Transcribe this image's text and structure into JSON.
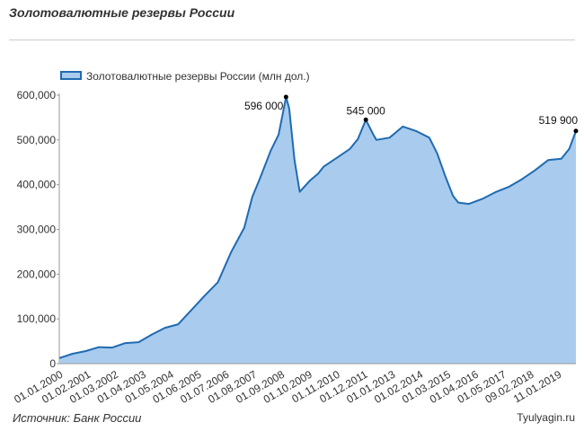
{
  "header": {
    "title": "Золотовалютные резервы России"
  },
  "footer": {
    "source": "Источник: Банк России",
    "site": "Tyulyagin.ru"
  },
  "chart_data": {
    "type": "area",
    "title": "Золотовалютные резервы России",
    "legend": {
      "label": "Золотовалютные резервы России (млн дол.)",
      "position": "top-left"
    },
    "ylim": [
      0,
      600000
    ],
    "grid": false,
    "y_ticks": [
      "0",
      "100,000",
      "200,000",
      "300,000",
      "400,000",
      "500,000",
      "600,000"
    ],
    "x_ticks": [
      "01.01.2000",
      "01.02.2001",
      "01.03.2002",
      "01.04.2003",
      "01.05.2004",
      "01.06.2005",
      "01.07.2006",
      "01.08.2007",
      "01.09.2008",
      "01.10.2009",
      "01.11.2010",
      "01.12.2011",
      "01.01.2013",
      "01.02.2014",
      "01.03.2015",
      "01.04.2016",
      "01.05.2017",
      "09.02.2018",
      "11.01.2019"
    ],
    "colors": {
      "line": "#1f6bb0",
      "fill": "#a9cbee"
    },
    "series": [
      {
        "name": "Золотовалютные резервы России (млн дол.)",
        "x": [
          2000.0,
          2000.5,
          2001.0,
          2001.5,
          2002.0,
          2002.5,
          2003.0,
          2003.5,
          2004.0,
          2004.5,
          2005.0,
          2005.5,
          2006.0,
          2006.5,
          2007.0,
          2007.3,
          2007.6,
          2008.0,
          2008.3,
          2008.58,
          2008.7,
          2008.9,
          2009.1,
          2009.5,
          2009.8,
          2010.0,
          2010.5,
          2011.0,
          2011.3,
          2011.6,
          2011.9,
          2012.0,
          2012.5,
          2013.0,
          2013.5,
          2014.0,
          2014.3,
          2014.6,
          2014.9,
          2015.1,
          2015.5,
          2016.0,
          2016.5,
          2017.0,
          2017.5,
          2018.0,
          2018.5,
          2019.0,
          2019.3,
          2019.55
        ],
        "y": [
          12500,
          22000,
          28000,
          37000,
          36000,
          46000,
          48000,
          65000,
          80000,
          88000,
          120000,
          152000,
          182000,
          249000,
          304000,
          372000,
          415000,
          476000,
          512000,
          596000,
          570000,
          455000,
          384000,
          410000,
          425000,
          440000,
          460000,
          480000,
          502000,
          545000,
          510000,
          500000,
          505000,
          530000,
          520000,
          505000,
          470000,
          420000,
          375000,
          360000,
          357000,
          368000,
          383000,
          395000,
          412000,
          432000,
          455000,
          458000,
          480000,
          519900
        ]
      }
    ],
    "annotations": [
      {
        "x": 2008.58,
        "y": 596000,
        "label": "596 000"
      },
      {
        "x": 2011.6,
        "y": 545000,
        "label": "545 000"
      },
      {
        "x": 2019.55,
        "y": 519900,
        "label": "519 900"
      }
    ]
  }
}
